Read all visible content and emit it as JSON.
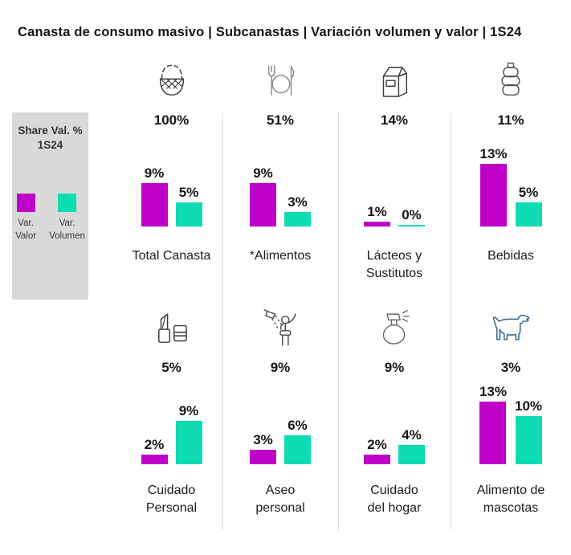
{
  "title": "Canasta de consumo masivo | Subcanastas | Variación volumen y valor | 1S24",
  "legend": {
    "title": "Share Val. %\n1S24",
    "items": [
      {
        "label": "Var.\nValor",
        "series": "valor"
      },
      {
        "label": "Var.\nVolumen",
        "series": "volumen"
      }
    ]
  },
  "colors": {
    "valor": "#BF00C8",
    "volumen": "#0EDCB2",
    "panel": "#D9D9D9",
    "divider": "#DCDCDC",
    "dog": "#46708E"
  },
  "chart_data": {
    "type": "bar",
    "unit": "percent",
    "series_names": [
      "Var. Valor",
      "Var. Volumen"
    ],
    "title": "Canasta de consumo masivo | Subcanastas | Variación volumen y valor | 1S24",
    "legend_note": "Share Val. % 1S24",
    "cells": [
      {
        "label": "Total Canasta",
        "icon": "basket-icon",
        "share": "100%",
        "valor": 9,
        "volumen": 5,
        "valor_label": "9%",
        "volumen_label": "5%"
      },
      {
        "label": "*Alimentos",
        "icon": "cutlery-icon",
        "share": "51%",
        "valor": 9,
        "volumen": 3,
        "valor_label": "9%",
        "volumen_label": "3%"
      },
      {
        "label": "Lácteos y\nSustitutos",
        "icon": "milk-carton-icon",
        "share": "14%",
        "valor": 1,
        "volumen": 0,
        "valor_label": "1%",
        "volumen_label": "0%"
      },
      {
        "label": "Bebidas",
        "icon": "bottle-icon",
        "share": "11%",
        "valor": 13,
        "volumen": 5,
        "valor_label": "13%",
        "volumen_label": "5%"
      },
      {
        "label": "Cuidado\nPersonal",
        "icon": "lipstick-icon",
        "share": "5%",
        "valor": 2,
        "volumen": 9,
        "valor_label": "2%",
        "volumen_label": "9%"
      },
      {
        "label": "Aseo\npersonal",
        "icon": "shower-icon",
        "share": "9%",
        "valor": 3,
        "volumen": 6,
        "valor_label": "3%",
        "volumen_label": "6%"
      },
      {
        "label": "Cuidado\ndel hogar",
        "icon": "spray-icon",
        "share": "9%",
        "valor": 2,
        "volumen": 4,
        "valor_label": "2%",
        "volumen_label": "4%"
      },
      {
        "label": "Alimento de\nmascotas",
        "icon": "dog-icon",
        "share": "3%",
        "valor": 13,
        "volumen": 10,
        "valor_label": "13%",
        "volumen_label": "10%"
      }
    ]
  }
}
